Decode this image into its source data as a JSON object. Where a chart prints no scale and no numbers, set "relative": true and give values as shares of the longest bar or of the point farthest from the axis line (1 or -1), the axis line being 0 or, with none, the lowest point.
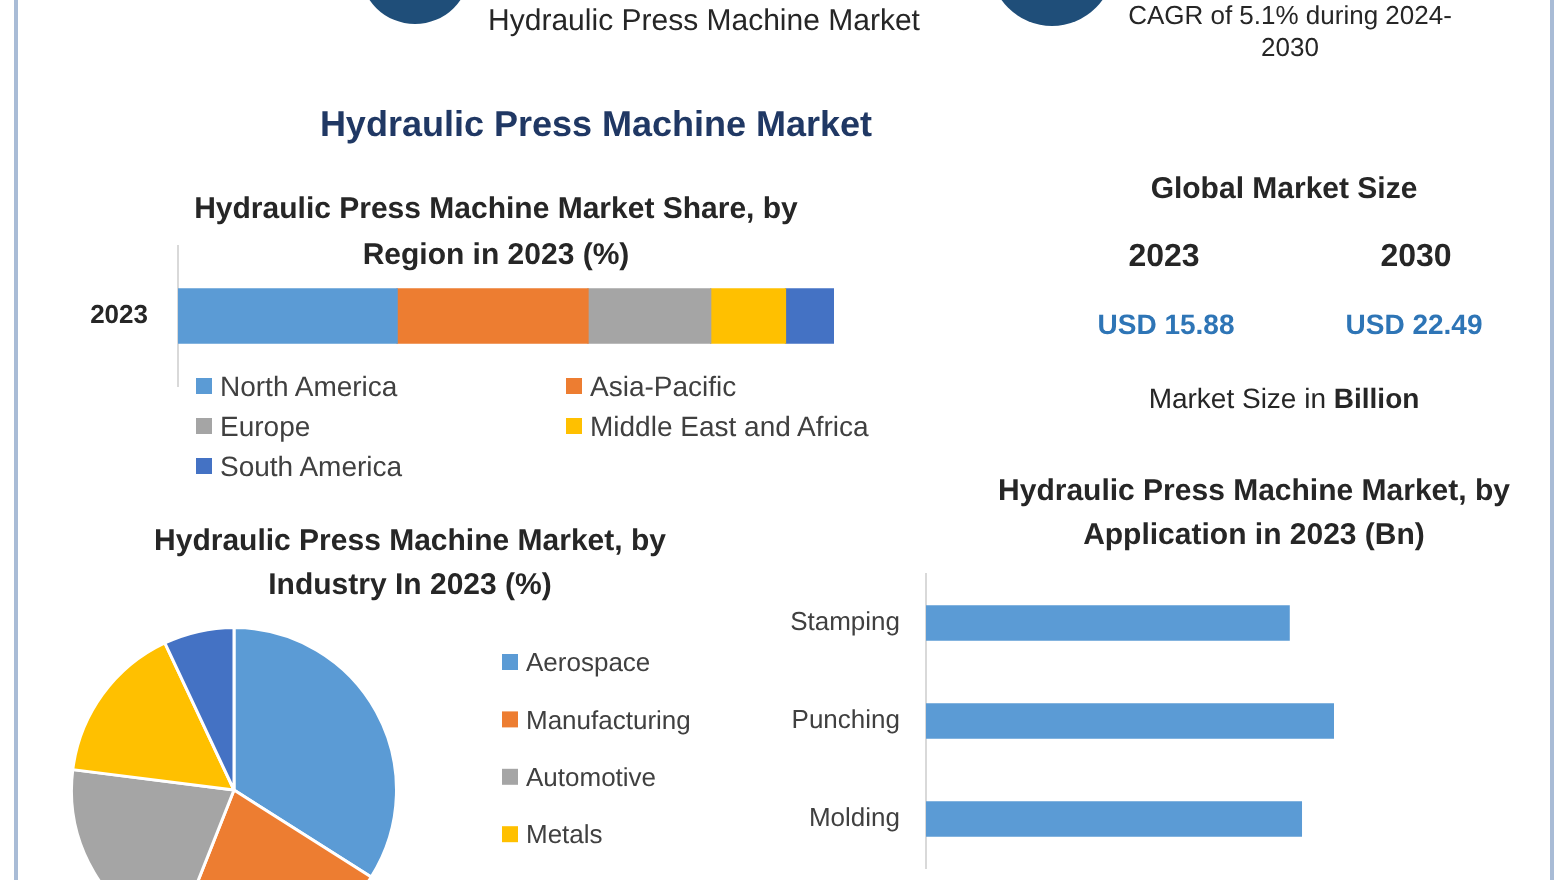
{
  "chart_data": [
    {
      "type": "other",
      "title": "Hydraulic Press Machine Market",
      "annotations": [
        "Hydraulic Press Machine Market",
        "CAGR of 5.1% during 2024-2030"
      ]
    },
    {
      "type": "bar",
      "title": "Hydraulic Press Machine Market Share, by Region in 2023 (%)",
      "categories": [
        "2023"
      ],
      "orientation": "horizontal",
      "stacked": true,
      "relative": true,
      "legend": "bottom",
      "series": [
        {
          "name": "North America",
          "color": "#5b9bd5",
          "values": [
            0.334
          ]
        },
        {
          "name": "Asia-Pacific",
          "color": "#ed7d31",
          "values": [
            0.291
          ]
        },
        {
          "name": "Europe",
          "color": "#a5a5a5",
          "values": [
            0.187
          ]
        },
        {
          "name": "Middle East and Africa",
          "color": "#ffc000",
          "values": [
            0.114
          ]
        },
        {
          "name": "South America",
          "color": "#4472c4",
          "values": [
            0.074
          ]
        }
      ]
    },
    {
      "type": "other",
      "title": "Global Market Size",
      "annotations": [
        "2023",
        "2030",
        "USD 15.88",
        "USD 22.49",
        "Market Size in Billion"
      ]
    },
    {
      "type": "pie",
      "title": "Hydraulic Press Machine Market, by Industry In 2023 (%)",
      "categories": [
        "Aerospace",
        "Manufacturing",
        "Automotive",
        "Metals",
        null
      ],
      "values": [
        34,
        22,
        21,
        16,
        7
      ],
      "colors": [
        "#5b9bd5",
        "#ed7d31",
        "#a5a5a5",
        "#ffc000",
        "#4472c4"
      ],
      "legend": "right"
    },
    {
      "type": "bar",
      "title": "Hydraulic Press Machine Market, by Application in 2023 (Bn)",
      "categories": [
        "Stamping",
        "Punching",
        "Molding"
      ],
      "orientation": "horizontal",
      "relative": true,
      "values": [
        0.89,
        1,
        0.92
      ],
      "color": "#5b9bd5"
    }
  ]
}
